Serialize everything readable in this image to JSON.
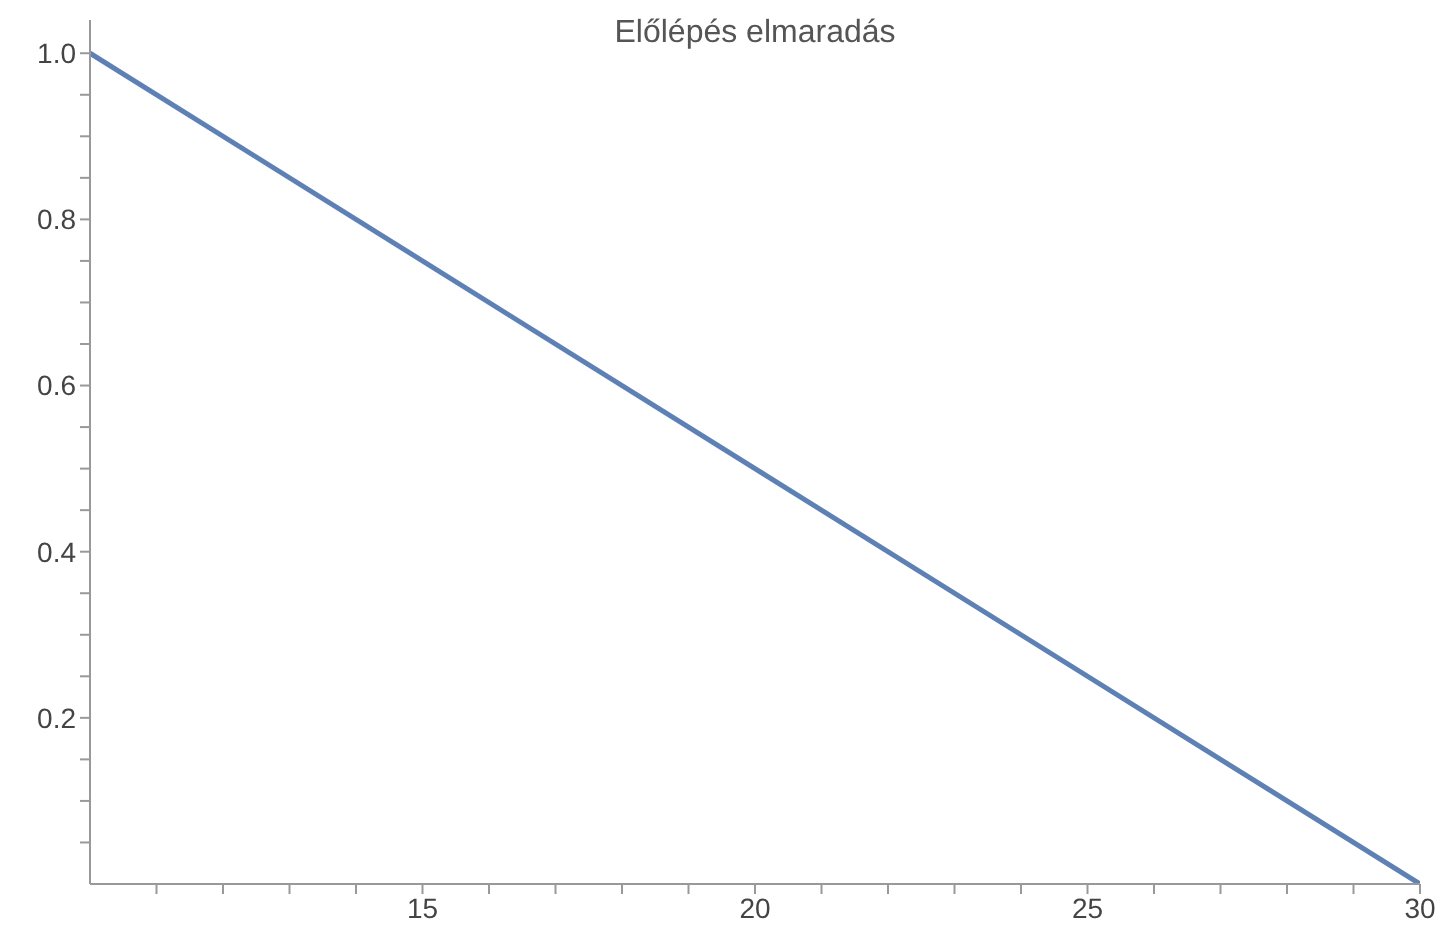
{
  "chart_data": {
    "type": "line",
    "title": "Előlépés elmaradás",
    "x": [
      10,
      30
    ],
    "series": [
      {
        "color": "#5e81b5",
        "values": [
          1,
          0
        ]
      }
    ],
    "xlim": [
      10,
      30
    ],
    "ylim": [
      0,
      1.04
    ],
    "xticks": [
      {
        "value": 11,
        "label": null
      },
      {
        "value": 12,
        "label": null
      },
      {
        "value": 13,
        "label": null
      },
      {
        "value": 14,
        "label": null
      },
      15,
      {
        "value": 16,
        "label": null
      },
      {
        "value": 17,
        "label": null
      },
      {
        "value": 18,
        "label": null
      },
      {
        "value": 19,
        "label": null
      },
      20,
      {
        "value": 21,
        "label": null
      },
      {
        "value": 22,
        "label": null
      },
      {
        "value": 23,
        "label": null
      },
      {
        "value": 24,
        "label": null
      },
      25,
      {
        "value": 26,
        "label": null
      },
      {
        "value": 27,
        "label": null
      },
      {
        "value": 28,
        "label": null
      },
      {
        "value": 29,
        "label": null
      },
      30
    ],
    "yticks": [
      {
        "value": 0.05,
        "label": null
      },
      {
        "value": 0.1,
        "label": null
      },
      {
        "value": 0.15,
        "label": null
      },
      0.2,
      {
        "value": 0.25,
        "label": null
      },
      {
        "value": 0.3,
        "label": null
      },
      {
        "value": 0.35,
        "label": null
      },
      0.4,
      {
        "value": 0.45,
        "label": null
      },
      {
        "value": 0.5,
        "label": null
      },
      {
        "value": 0.55,
        "label": null
      },
      0.6,
      {
        "value": 0.65,
        "label": null
      },
      {
        "value": 0.7,
        "label": null
      },
      {
        "value": 0.75,
        "label": null
      },
      0.8,
      {
        "value": 0.85,
        "label": null
      },
      {
        "value": 0.9,
        "label": null
      },
      {
        "value": 0.95,
        "label": null
      },
      {
        "value": 1,
        "label": "1.0"
      }
    ],
    "grid": false,
    "legend": false,
    "marker": "none",
    "line_style": "solid"
  }
}
